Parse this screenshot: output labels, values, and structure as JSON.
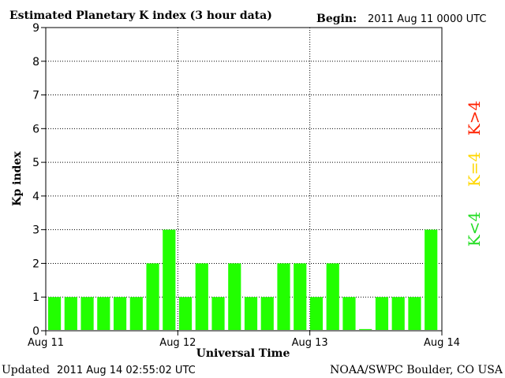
{
  "header": {
    "title": "Estimated Planetary K index (3 hour data)",
    "begin_label": "Begin:",
    "begin_value": "2011 Aug 11 0000 UTC"
  },
  "footer": {
    "updated_label": "Updated",
    "updated_value": "2011 Aug 14 02:55:02 UTC",
    "source": "NOAA/SWPC Boulder, CO USA"
  },
  "legend": [
    {
      "label": "K>4",
      "color": "#ff2200"
    },
    {
      "label": "K=4",
      "color": "#ffd700"
    },
    {
      "label": "K<4",
      "color": "#22dd22"
    }
  ],
  "chart_data": {
    "type": "bar",
    "title": "Estimated Planetary K index (3 hour data)",
    "xlabel": "Universal Time",
    "ylabel": "Kp index",
    "ylim": [
      0,
      9
    ],
    "yticks": [
      "0",
      "1",
      "2",
      "3",
      "4",
      "5",
      "6",
      "7",
      "8",
      "9"
    ],
    "xticks": [
      "Aug 11",
      "Aug 12",
      "Aug 13",
      "Aug 14"
    ],
    "grid": true,
    "bar_color": "#22ff00",
    "values": [
      1,
      1,
      1,
      1,
      1,
      1,
      2,
      3,
      1,
      2,
      1,
      2,
      1,
      1,
      2,
      2,
      1,
      2,
      1,
      0.05,
      1,
      1,
      1,
      3
    ]
  }
}
